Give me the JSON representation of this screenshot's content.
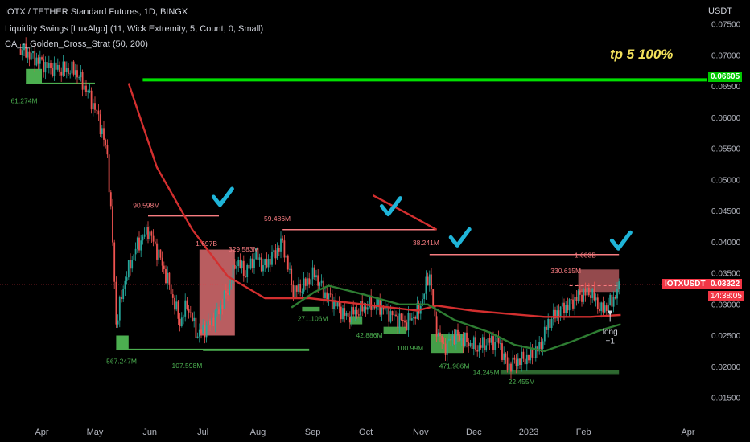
{
  "header": {
    "title": "IOTX / TETHER Standard Futures, 1D, BINGX",
    "indicator1": "Liquidity Swings [LuxAlgo] (11, Wick Extremity, 5, Count, 0, Small)",
    "indicator2": "CA_-_Golden_Cross_Strat (50, 200)"
  },
  "axis_currency": "USDT",
  "symbol_tag": "IOTXUSDT",
  "price_tag": "0.03322",
  "countdown_tag": "14:38:05",
  "target_tag": "0.06605",
  "annotations": {
    "tp_label": "tp 5 100%",
    "long_label": "long",
    "plus_label": "+1"
  },
  "colors": {
    "bull": "#26a69a",
    "bear": "#ef5350",
    "ma_fast": "#2e7d32",
    "ma_slow": "#d32f2f",
    "target_line": "#00e000",
    "check": "#1fb5d9",
    "liq_red": "#f77c80",
    "liq_green": "#4caf50"
  },
  "chart_data": {
    "type": "candlestick",
    "title": "IOTX / TETHER Standard Futures, 1D, BINGX",
    "y_ticks": [
      "0.07500",
      "0.07000",
      "0.06500",
      "0.06000",
      "0.05500",
      "0.05000",
      "0.04500",
      "0.04000",
      "0.03500",
      "0.03000",
      "0.02500",
      "0.02000",
      "0.01500"
    ],
    "x_ticks": [
      "Apr",
      "May",
      "Jun",
      "Jul",
      "Aug",
      "Sep",
      "Oct",
      "Nov",
      "Dec",
      "2023",
      "Feb",
      "Apr"
    ],
    "ylim": [
      0.0126,
      0.0765
    ],
    "path": [
      [
        "2022-03-20",
        0.071
      ],
      [
        "2022-04-05",
        0.068
      ],
      [
        "2022-04-20",
        0.0675
      ],
      [
        "2022-04-27",
        0.064
      ],
      [
        "2022-05-03",
        0.06
      ],
      [
        "2022-05-08",
        0.054
      ],
      [
        "2022-05-11",
        0.04
      ],
      [
        "2022-05-13",
        0.027
      ],
      [
        "2022-05-18",
        0.034
      ],
      [
        "2022-05-24",
        0.039
      ],
      [
        "2022-05-31",
        0.042
      ],
      [
        "2022-06-06",
        0.038
      ],
      [
        "2022-06-12",
        0.033
      ],
      [
        "2022-06-18",
        0.027
      ],
      [
        "2022-06-22",
        0.03
      ],
      [
        "2022-06-28",
        0.025
      ],
      [
        "2022-07-05",
        0.027
      ],
      [
        "2022-07-10",
        0.029
      ],
      [
        "2022-07-16",
        0.033
      ],
      [
        "2022-07-20",
        0.037
      ],
      [
        "2022-07-25",
        0.035
      ],
      [
        "2022-07-31",
        0.038
      ],
      [
        "2022-08-04",
        0.036
      ],
      [
        "2022-08-10",
        0.038
      ],
      [
        "2022-08-15",
        0.04
      ],
      [
        "2022-08-21",
        0.032
      ],
      [
        "2022-08-27",
        0.033
      ],
      [
        "2022-09-02",
        0.035
      ],
      [
        "2022-09-07",
        0.032
      ],
      [
        "2022-09-14",
        0.03
      ],
      [
        "2022-09-20",
        0.028
      ],
      [
        "2022-09-27",
        0.029
      ],
      [
        "2022-10-03",
        0.03
      ],
      [
        "2022-10-10",
        0.0295
      ],
      [
        "2022-10-17",
        0.028
      ],
      [
        "2022-10-24",
        0.027
      ],
      [
        "2022-10-31",
        0.029
      ],
      [
        "2022-11-06",
        0.035
      ],
      [
        "2022-11-09",
        0.027
      ],
      [
        "2022-11-14",
        0.023
      ],
      [
        "2022-11-20",
        0.025
      ],
      [
        "2022-11-27",
        0.024
      ],
      [
        "2022-12-03",
        0.023
      ],
      [
        "2022-12-09",
        0.024
      ],
      [
        "2022-12-15",
        0.024
      ],
      [
        "2022-12-20",
        0.02
      ],
      [
        "2022-12-26",
        0.021
      ],
      [
        "2023-01-01",
        0.0215
      ],
      [
        "2023-01-07",
        0.023
      ],
      [
        "2023-01-12",
        0.027
      ],
      [
        "2023-01-18",
        0.029
      ],
      [
        "2023-01-24",
        0.03
      ],
      [
        "2023-01-30",
        0.0315
      ],
      [
        "2023-02-05",
        0.032
      ],
      [
        "2023-02-11",
        0.029
      ],
      [
        "2023-02-17",
        0.0305
      ],
      [
        "2023-02-22",
        0.0332
      ]
    ],
    "ma_fast": [
      [
        "2022-08-20",
        0.0295
      ],
      [
        "2022-09-02",
        0.032
      ],
      [
        "2022-09-10",
        0.033
      ],
      [
        "2022-10-01",
        0.0315
      ],
      [
        "2022-10-20",
        0.03
      ],
      [
        "2022-11-05",
        0.03
      ],
      [
        "2022-11-20",
        0.0275
      ],
      [
        "2022-12-10",
        0.0255
      ],
      [
        "2022-12-24",
        0.0235
      ],
      [
        "2023-01-10",
        0.0225
      ],
      [
        "2023-01-25",
        0.024
      ],
      [
        "2023-02-10",
        0.0258
      ],
      [
        "2023-02-22",
        0.0268
      ]
    ],
    "ma_slow": [
      [
        "2022-05-20",
        0.0655
      ],
      [
        "2022-06-05",
        0.052
      ],
      [
        "2022-06-25",
        0.042
      ],
      [
        "2022-07-15",
        0.0345
      ],
      [
        "2022-08-05",
        0.031
      ],
      [
        "2022-08-30",
        0.031
      ],
      [
        "2022-09-30",
        0.03
      ],
      [
        "2022-10-30",
        0.029
      ],
      [
        "2022-11-10",
        0.0298
      ],
      [
        "2022-11-30",
        0.029
      ],
      [
        "2022-12-20",
        0.0285
      ],
      [
        "2023-01-10",
        0.028
      ],
      [
        "2023-02-05",
        0.028
      ],
      [
        "2023-02-22",
        0.0283
      ]
    ],
    "ma_slow_old": [
      [
        "2022-10-05",
        0.0475
      ],
      [
        "2022-10-25",
        0.0445
      ],
      [
        "2022-11-10",
        0.042
      ]
    ],
    "levels": [
      {
        "type": "high",
        "from": "2022-05-31",
        "to": "2022-07-10",
        "y": 0.0442,
        "label": "90.598M"
      },
      {
        "type": "high",
        "from": "2022-08-15",
        "to": "2022-11-10",
        "y": 0.042,
        "label": "59.486M"
      },
      {
        "type": "high",
        "from": "2022-11-06",
        "to": "2023-02-21",
        "y": 0.038,
        "label": "38.241M"
      },
      {
        "type": "low",
        "from": "2022-05-13",
        "to": "2022-08-30",
        "y": 0.0228,
        "label": "567.247M"
      },
      {
        "type": "low",
        "from": "2022-07-01",
        "to": "2022-08-30",
        "y": 0.0226,
        "label": "107.598M"
      },
      {
        "type": "low",
        "from": "2022-12-16",
        "to": "2023-02-21",
        "y": 0.0188,
        "label": "22.455M"
      },
      {
        "type": "low",
        "from": "2022-03-23",
        "to": "2022-05-01",
        "y": 0.0655,
        "label": "61.274M"
      }
    ],
    "target": {
      "price": 0.06605,
      "label": "tp 5 100%"
    },
    "volume_labels": [
      {
        "text": "90.598M",
        "date": "2022-05-30",
        "y": 0.0455,
        "color": "red"
      },
      {
        "text": "59.486M",
        "date": "2022-08-12",
        "y": 0.0434,
        "color": "red"
      },
      {
        "text": "38.241M",
        "date": "2022-11-04",
        "y": 0.0395,
        "color": "red"
      },
      {
        "text": "1.697B",
        "date": "2022-07-03",
        "y": 0.0394,
        "color": "red"
      },
      {
        "text": "329.583M",
        "date": "2022-07-24",
        "y": 0.0385,
        "color": "red"
      },
      {
        "text": "1.603B",
        "date": "2023-02-02",
        "y": 0.0375,
        "color": "red"
      },
      {
        "text": "330.615M",
        "date": "2023-01-22",
        "y": 0.035,
        "color": "red"
      },
      {
        "text": "271.106M",
        "date": "2022-09-01",
        "y": 0.0273,
        "color": "green"
      },
      {
        "text": "42.886M",
        "date": "2022-10-03",
        "y": 0.0247,
        "color": "green"
      },
      {
        "text": "100.99M",
        "date": "2022-10-26",
        "y": 0.0226,
        "color": "green"
      },
      {
        "text": "471.986M",
        "date": "2022-11-20",
        "y": 0.0197,
        "color": "green"
      },
      {
        "text": "14.245M",
        "date": "2022-12-08",
        "y": 0.0187,
        "color": "green"
      },
      {
        "text": "22.455M",
        "date": "2022-12-28",
        "y": 0.0172,
        "color": "green"
      },
      {
        "text": "567.247M",
        "date": "2022-05-16",
        "y": 0.0205,
        "color": "green"
      },
      {
        "text": "107.598M",
        "date": "2022-06-22",
        "y": 0.0198,
        "color": "green"
      },
      {
        "text": "61.274M",
        "date": "2022-03-22",
        "y": 0.0623,
        "color": "green"
      }
    ],
    "checkmarks": [
      {
        "date": "2022-07-12",
        "y": 0.047
      },
      {
        "date": "2022-10-15",
        "y": 0.0455
      },
      {
        "date": "2022-11-23",
        "y": 0.0405
      },
      {
        "date": "2023-02-22",
        "y": 0.04
      }
    ],
    "grid": false,
    "legend": "none"
  }
}
